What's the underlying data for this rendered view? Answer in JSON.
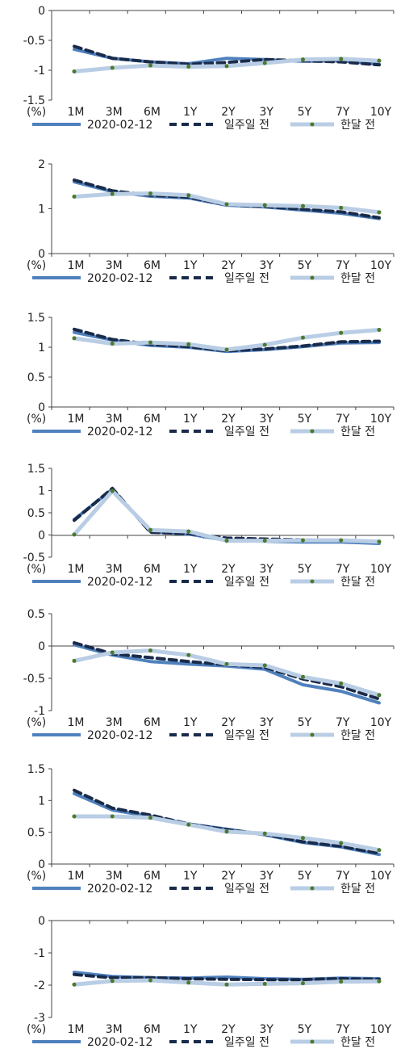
{
  "legend": {
    "series1": "2020-02-12",
    "series2": "일주일 전",
    "series3": "한달 전"
  },
  "colors": {
    "series1": "#4f81bd",
    "series2": "#1a2b4a",
    "series3": "#b9cde5",
    "marker": "#4b7a2b"
  },
  "unit_label": "(%)",
  "chart_data": [
    {
      "type": "line",
      "categories": [
        "1M",
        "3M",
        "6M",
        "1Y",
        "2Y",
        "3Y",
        "5Y",
        "7Y",
        "10Y"
      ],
      "ylim": [
        -1.5,
        0
      ],
      "yticks": [
        "0",
        "-0.5",
        "-1",
        "-1.5"
      ],
      "ytick_values": [
        0,
        -0.5,
        -1,
        -1.5
      ],
      "series": [
        {
          "name": "2020-02-12",
          "values": [
            -0.65,
            -0.8,
            -0.86,
            -0.89,
            -0.8,
            -0.82,
            -0.85,
            -0.84,
            -0.9
          ]
        },
        {
          "name": "일주일 전",
          "values": [
            -0.6,
            -0.8,
            -0.86,
            -0.9,
            -0.87,
            -0.82,
            -0.84,
            -0.86,
            -0.91
          ]
        },
        {
          "name": "한달 전",
          "values": [
            -1.02,
            -0.96,
            -0.92,
            -0.94,
            -0.93,
            -0.88,
            -0.82,
            -0.81,
            -0.84
          ]
        }
      ]
    },
    {
      "type": "line",
      "categories": [
        "1M",
        "3M",
        "6M",
        "1Y",
        "2Y",
        "3Y",
        "5Y",
        "7Y",
        "10Y"
      ],
      "ylim": [
        0,
        2
      ],
      "yticks": [
        "2",
        "1",
        "0"
      ],
      "ytick_values": [
        2,
        1,
        0
      ],
      "series": [
        {
          "name": "2020-02-12",
          "values": [
            1.6,
            1.38,
            1.28,
            1.24,
            1.08,
            1.04,
            0.97,
            0.9,
            0.78
          ]
        },
        {
          "name": "일주일 전",
          "values": [
            1.64,
            1.4,
            1.3,
            1.26,
            1.09,
            1.05,
            0.99,
            0.93,
            0.8
          ]
        },
        {
          "name": "한달 전",
          "values": [
            1.27,
            1.33,
            1.34,
            1.3,
            1.1,
            1.08,
            1.06,
            1.02,
            0.92
          ]
        }
      ]
    },
    {
      "type": "line",
      "categories": [
        "1M",
        "3M",
        "6M",
        "1Y",
        "2Y",
        "3Y",
        "5Y",
        "7Y",
        "10Y"
      ],
      "ylim": [
        0,
        1.5
      ],
      "yticks": [
        "1.5",
        "1",
        "0.5",
        "0"
      ],
      "ytick_values": [
        1.5,
        1,
        0.5,
        0
      ],
      "series": [
        {
          "name": "2020-02-12",
          "values": [
            1.25,
            1.12,
            1.03,
            1.0,
            0.93,
            0.96,
            1.01,
            1.07,
            1.08
          ]
        },
        {
          "name": "일주일 전",
          "values": [
            1.3,
            1.13,
            1.05,
            1.01,
            0.94,
            0.97,
            1.02,
            1.09,
            1.1
          ]
        },
        {
          "name": "한달 전",
          "values": [
            1.15,
            1.06,
            1.08,
            1.05,
            0.96,
            1.04,
            1.16,
            1.24,
            1.29
          ]
        }
      ]
    },
    {
      "type": "line",
      "categories": [
        "1M",
        "3M",
        "6M",
        "1Y",
        "2Y",
        "3Y",
        "5Y",
        "7Y",
        "10Y"
      ],
      "ylim": [
        -0.5,
        1.5
      ],
      "yticks": [
        "1.5",
        "1",
        "0.5",
        "0",
        "-0.5"
      ],
      "ytick_values": [
        1.5,
        1,
        0.5,
        0,
        -0.5
      ],
      "series": [
        {
          "name": "2020-02-12",
          "values": [
            0.35,
            1.03,
            0.07,
            0.02,
            -0.12,
            -0.14,
            -0.16,
            -0.16,
            -0.19
          ]
        },
        {
          "name": "일주일 전",
          "values": [
            0.33,
            1.05,
            0.06,
            0.03,
            -0.07,
            -0.09,
            -0.11,
            -0.13,
            -0.15
          ]
        },
        {
          "name": "한달 전",
          "values": [
            0.01,
            0.99,
            0.11,
            0.08,
            -0.13,
            -0.13,
            -0.12,
            -0.12,
            -0.15
          ]
        }
      ]
    },
    {
      "type": "line",
      "categories": [
        "1M",
        "3M",
        "6M",
        "1Y",
        "2Y",
        "3Y",
        "5Y",
        "7Y",
        "10Y"
      ],
      "ylim": [
        -1,
        0.5
      ],
      "yticks": [
        "0.5",
        "0",
        "-0.5",
        "-1"
      ],
      "ytick_values": [
        0.5,
        0,
        -0.5,
        -1
      ],
      "series": [
        {
          "name": "2020-02-12",
          "values": [
            0.02,
            -0.14,
            -0.24,
            -0.28,
            -0.31,
            -0.36,
            -0.6,
            -0.7,
            -0.88
          ]
        },
        {
          "name": "일주일 전",
          "values": [
            0.05,
            -0.12,
            -0.18,
            -0.24,
            -0.29,
            -0.33,
            -0.51,
            -0.63,
            -0.82
          ]
        },
        {
          "name": "한달 전",
          "values": [
            -0.23,
            -0.1,
            -0.07,
            -0.14,
            -0.28,
            -0.3,
            -0.48,
            -0.58,
            -0.76
          ]
        }
      ]
    },
    {
      "type": "line",
      "categories": [
        "1M",
        "3M",
        "6M",
        "1Y",
        "2Y",
        "3Y",
        "5Y",
        "7Y",
        "10Y"
      ],
      "ylim": [
        0,
        1.5
      ],
      "yticks": [
        "1.5",
        "1",
        "0.5",
        "0"
      ],
      "ytick_values": [
        1.5,
        1,
        0.5,
        0
      ],
      "series": [
        {
          "name": "2020-02-12",
          "values": [
            1.11,
            0.85,
            0.75,
            0.63,
            0.55,
            0.46,
            0.34,
            0.27,
            0.15
          ]
        },
        {
          "name": "일주일 전",
          "values": [
            1.16,
            0.88,
            0.77,
            0.63,
            0.54,
            0.47,
            0.35,
            0.28,
            0.17
          ]
        },
        {
          "name": "한달 전",
          "values": [
            0.75,
            0.75,
            0.73,
            0.62,
            0.51,
            0.48,
            0.41,
            0.33,
            0.22
          ]
        }
      ]
    },
    {
      "type": "line",
      "categories": [
        "1M",
        "3M",
        "6M",
        "1Y",
        "2Y",
        "3Y",
        "5Y",
        "7Y",
        "10Y"
      ],
      "ylim": [
        -3,
        0
      ],
      "yticks": [
        "0",
        "-1",
        "-2",
        "-3"
      ],
      "ytick_values": [
        0,
        -1,
        -2,
        -3
      ],
      "series": [
        {
          "name": "2020-02-12",
          "values": [
            -1.6,
            -1.73,
            -1.77,
            -1.78,
            -1.75,
            -1.8,
            -1.82,
            -1.78,
            -1.8
          ]
        },
        {
          "name": "일주일 전",
          "values": [
            -1.67,
            -1.77,
            -1.77,
            -1.8,
            -1.82,
            -1.83,
            -1.83,
            -1.8,
            -1.82
          ]
        },
        {
          "name": "한달 전",
          "values": [
            -1.98,
            -1.87,
            -1.85,
            -1.92,
            -1.98,
            -1.96,
            -1.94,
            -1.89,
            -1.88
          ]
        }
      ]
    }
  ]
}
